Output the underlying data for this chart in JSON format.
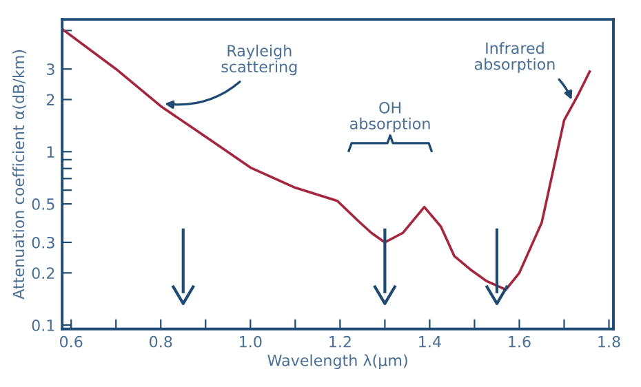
{
  "chart_data": {
    "type": "line",
    "xlabel": "Wavelength λ(μm)",
    "ylabel": "Attenuation coefficient α(dB/km)",
    "x": [
      0.58,
      0.7,
      0.8,
      0.9,
      1.0,
      1.1,
      1.194,
      1.24,
      1.27,
      1.3,
      1.34,
      1.388,
      1.425,
      1.455,
      1.49,
      1.526,
      1.57,
      1.6,
      1.65,
      1.7,
      1.73,
      1.757
    ],
    "series": [
      {
        "color": "#a3283f",
        "values": [
          5.1,
          3.0,
          1.83,
          1.22,
          0.81,
          0.62,
          0.52,
          0.4,
          0.34,
          0.3,
          0.34,
          0.48,
          0.37,
          0.25,
          0.21,
          0.18,
          0.16,
          0.2,
          0.39,
          1.52,
          2.1,
          2.9
        ]
      }
    ],
    "log": "y",
    "xlim": [
      0.58,
      1.81
    ],
    "ylim": [
      0.095,
      5.8
    ],
    "xticks": [
      0.6,
      {
        "value": 0.7,
        "label": null
      },
      0.8,
      {
        "value": 0.9,
        "label": null
      },
      {
        "value": 1.0,
        "label": "1.0"
      },
      {
        "value": 1.1,
        "label": null
      },
      1.2,
      {
        "value": 1.3,
        "label": null
      },
      1.4,
      {
        "value": 1.5,
        "label": null
      },
      1.6,
      {
        "value": 1.7,
        "label": null
      },
      1.8
    ],
    "yticks": [
      0.1,
      0.2,
      0.3,
      0.5,
      {
        "value": 0.6,
        "label": null
      },
      {
        "value": 0.7,
        "label": null
      },
      {
        "value": 0.8,
        "label": null
      },
      {
        "value": 0.9,
        "label": null
      },
      1,
      2,
      3,
      {
        "value": 5,
        "label": null
      }
    ],
    "grid": false,
    "marker": "none",
    "line_style": "solid",
    "ref_lines": [
      {
        "axis": "x",
        "value": 0.85,
        "color": "#1f4a73"
      },
      {
        "axis": "x",
        "value": 1.3,
        "color": "#1f4a73"
      },
      {
        "axis": "x",
        "value": 1.55,
        "color": "#1f4a73"
      }
    ],
    "annotations": [
      {
        "text": "Rayleigh\nscattering",
        "x": 0.8,
        "y": 1.9
      },
      "OH\nabsorption",
      {
        "text": "Infrared\nabsorption",
        "x": 1.72,
        "y": 1.9
      }
    ]
  }
}
